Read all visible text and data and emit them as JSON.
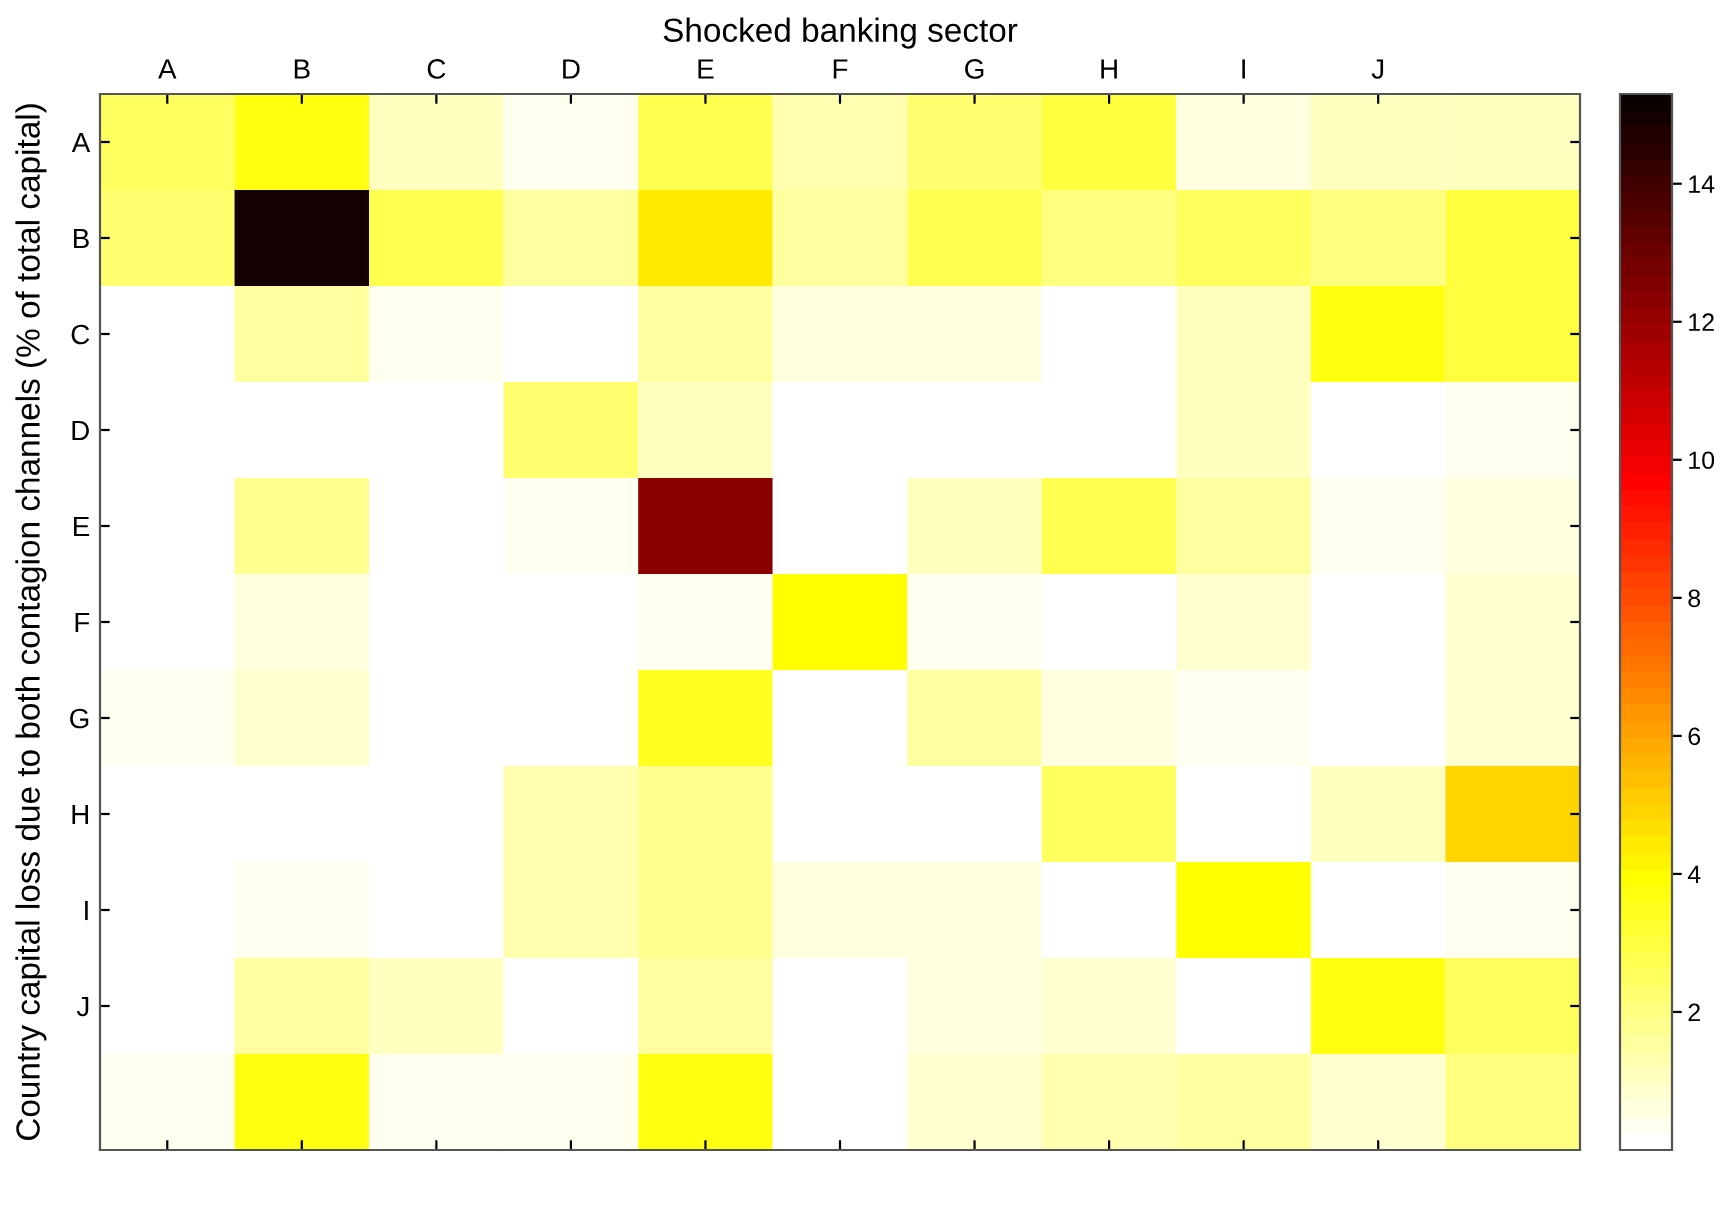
{
  "chart_data": {
    "type": "heatmap",
    "xlabel": "Shocked banking sector",
    "ylabel": "Country capital loss due to both contagion channels (% of total capital)",
    "categories": [
      "A",
      "B",
      "C",
      "D",
      "E",
      "F",
      "G",
      "H",
      "I",
      "J",
      null
    ],
    "y_categories": [
      "A",
      "B",
      "C",
      "D",
      "E",
      "F",
      "G",
      "H",
      "I",
      "J",
      null
    ],
    "cells": [
      [
        2.5,
        3.6,
        1.0,
        0.3,
        2.8,
        1.3,
        2.3,
        3.0,
        0.6,
        1.0,
        1.0
      ],
      [
        2.3,
        15.0,
        2.7,
        1.5,
        4.4,
        1.5,
        2.8,
        2.0,
        2.5,
        2.0,
        3.0
      ],
      [
        0,
        1.5,
        0.4,
        0,
        1.6,
        0.6,
        0.6,
        0,
        1.0,
        3.8,
        3.0
      ],
      [
        0,
        0,
        0,
        2.2,
        1.0,
        0,
        0,
        0,
        1.0,
        0,
        0.4
      ],
      [
        0,
        1.8,
        0,
        0.3,
        12.3,
        0,
        1.1,
        2.8,
        1.6,
        0.4,
        0.7
      ],
      [
        0,
        0.6,
        0,
        0,
        0.4,
        4.0,
        0.4,
        0,
        0.9,
        0,
        0.8
      ],
      [
        0.3,
        0.8,
        0,
        0,
        3.5,
        0,
        1.6,
        0.6,
        0.4,
        0,
        0.8
      ],
      [
        0,
        0,
        0,
        1.3,
        1.8,
        0,
        0,
        2.6,
        0,
        1.0,
        5.0
      ],
      [
        0,
        0.3,
        0,
        1.4,
        1.8,
        0.6,
        0.6,
        0,
        3.9,
        0,
        0.3
      ],
      [
        0,
        1.6,
        1.1,
        0,
        1.6,
        0,
        0.6,
        0.9,
        0.2,
        3.6,
        2.5
      ],
      [
        0.3,
        3.8,
        0.4,
        0.3,
        3.7,
        0,
        0.9,
        1.3,
        1.6,
        0.8,
        2.0
      ]
    ],
    "clim": [
      0,
      15.3
    ],
    "cticks": [
      2,
      4,
      6,
      8,
      10,
      12,
      14
    ]
  }
}
